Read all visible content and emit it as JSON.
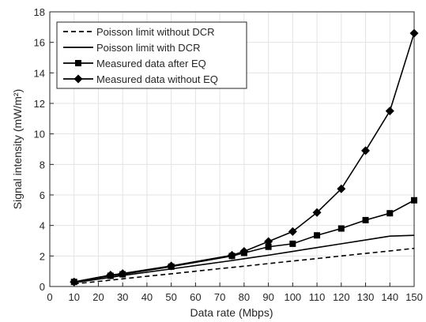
{
  "chart_data": {
    "type": "line",
    "xlabel": "Data rate (Mbps)",
    "ylabel": "Signal intensity (mW/m²)",
    "xlim": [
      0,
      150
    ],
    "xticks": [
      0,
      10,
      20,
      30,
      40,
      50,
      60,
      70,
      80,
      90,
      100,
      110,
      120,
      130,
      140,
      150
    ],
    "ylim": [
      0,
      18
    ],
    "yticks": [
      0,
      2,
      4,
      6,
      8,
      10,
      12,
      14,
      16,
      18
    ],
    "grid": true,
    "legend": "upper-left",
    "series": [
      {
        "name": "Poisson limit without DCR",
        "color": "#000000",
        "dash": true,
        "marker": "none",
        "x": [
          10,
          20,
          30,
          40,
          50,
          60,
          70,
          80,
          90,
          100,
          110,
          120,
          130,
          140,
          150
        ],
        "values": [
          0.17,
          0.33,
          0.5,
          0.67,
          0.83,
          1.0,
          1.17,
          1.33,
          1.5,
          1.67,
          1.83,
          2.0,
          2.17,
          2.33,
          2.5
        ]
      },
      {
        "name": "Poisson limit with DCR",
        "color": "#000000",
        "dash": false,
        "marker": "none",
        "x": [
          10,
          25,
          30,
          50,
          75,
          80,
          90,
          100,
          110,
          120,
          130,
          140,
          150
        ],
        "values": [
          0.25,
          0.6,
          0.72,
          1.15,
          1.7,
          1.82,
          2.05,
          2.3,
          2.55,
          2.8,
          3.05,
          3.3,
          3.35
        ]
      },
      {
        "name": "Measured data after EQ",
        "color": "#000000",
        "dash": false,
        "marker": "square",
        "x": [
          10,
          25,
          30,
          50,
          75,
          80,
          90,
          100,
          110,
          120,
          130,
          140,
          150
        ],
        "values": [
          0.3,
          0.7,
          0.8,
          1.3,
          2.0,
          2.2,
          2.6,
          2.8,
          3.35,
          3.8,
          4.35,
          4.8,
          5.65
        ]
      },
      {
        "name": "Measured data without EQ",
        "color": "#000000",
        "dash": false,
        "marker": "diamond",
        "x": [
          10,
          25,
          30,
          50,
          75,
          80,
          90,
          100,
          110,
          120,
          130,
          140,
          150
        ],
        "values": [
          0.3,
          0.75,
          0.85,
          1.35,
          2.05,
          2.3,
          2.95,
          3.6,
          4.85,
          6.4,
          8.9,
          11.5,
          16.6
        ]
      }
    ]
  }
}
